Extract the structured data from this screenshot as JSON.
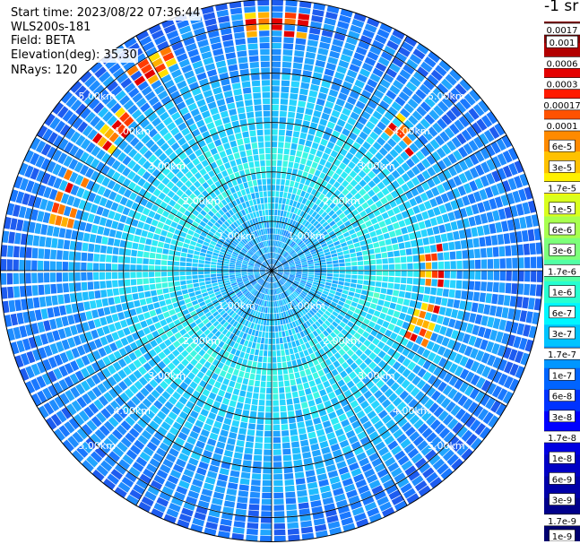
{
  "info": {
    "start_time": "Start time: 2023/08/22 07:36:44",
    "device": "WLS200s-181",
    "field": "Field: BETA",
    "elevation": "Elevation(deg): 35.30",
    "nrays": "NRays: 120"
  },
  "colorbar": {
    "unit_label": "-1 sr",
    "labels": [
      "0.0017",
      "0.001",
      "0.0006",
      "0.0003",
      "0.00017",
      "0.0001",
      "6e-5",
      "3e-5",
      "1.7e-5",
      "1e-5",
      "6e-6",
      "3e-6",
      "1.7e-6",
      "1e-6",
      "6e-7",
      "3e-7",
      "1.7e-7",
      "1e-7",
      "6e-8",
      "3e-8",
      "1.7e-8",
      "1e-8",
      "6e-9",
      "3e-9",
      "1.7e-9",
      "1e-9"
    ],
    "colors": [
      "#7f0000",
      "#b20000",
      "#e40000",
      "#ff1a00",
      "#ff5200",
      "#ff8a00",
      "#ffc100",
      "#fff100",
      "#d9ff1e",
      "#a8ff4f",
      "#7dff7a",
      "#52ffa5",
      "#27ffd0",
      "#00f6ff",
      "#00c4ff",
      "#0096ff",
      "#0064ff",
      "#0032ff",
      "#0000ff",
      "#0000e1",
      "#0000c4",
      "#0000a8",
      "#00008b",
      "#000070"
    ]
  },
  "chart_data": {
    "type": "ppi",
    "n_rays": 120,
    "max_range_km": 5.5,
    "range_rings_km": [
      1,
      2,
      3,
      4,
      5
    ],
    "ring_labels": [
      "1.00km",
      "2.00km",
      "3.00km",
      "4.00km",
      "5.00km"
    ],
    "spokes_deg": [
      0,
      30,
      60,
      90,
      120,
      150,
      180,
      210,
      240,
      270,
      300,
      330
    ],
    "hotspots": [
      {
        "azimuth_deg": -48,
        "range_km": 4.3,
        "level": "1e-4"
      },
      {
        "azimuth_deg": -30,
        "range_km": 4.7,
        "level": "6e-5"
      },
      {
        "azimuth_deg": 2,
        "range_km": 5.0,
        "level": "3e-5"
      },
      {
        "azimuth_deg": 45,
        "range_km": 3.9,
        "level": "3e-5"
      },
      {
        "azimuth_deg": 88,
        "range_km": 3.2,
        "level": "3e-5"
      },
      {
        "azimuth_deg": 110,
        "range_km": 3.3,
        "level": "6e-5"
      },
      {
        "azimuth_deg": -70,
        "range_km": 4.4,
        "level": "1e-5"
      }
    ]
  }
}
